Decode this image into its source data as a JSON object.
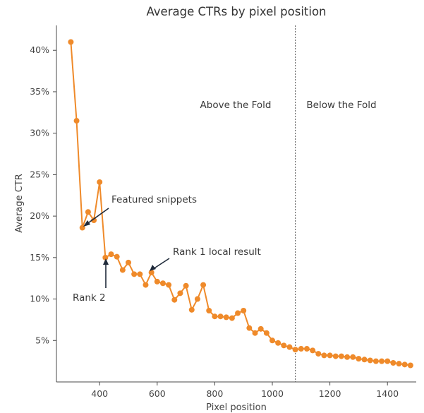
{
  "chart_data": {
    "type": "line",
    "title": "Average CTRs by pixel position",
    "xlabel": "Pixel position",
    "ylabel": "Average CTR",
    "xlim": [
      250,
      1500
    ],
    "ylim": [
      0,
      43
    ],
    "x_ticks": [
      400,
      600,
      800,
      1000,
      1200,
      1400
    ],
    "x_tick_labels": [
      "400",
      "600",
      "800",
      "1000",
      "1200",
      "1400"
    ],
    "y_ticks": [
      5,
      10,
      15,
      20,
      25,
      30,
      35,
      40
    ],
    "y_tick_labels": [
      "5%",
      "10%",
      "15%",
      "20%",
      "25%",
      "30%",
      "35%",
      "40%"
    ],
    "color": "#ef8a2a",
    "fold_x": 1080,
    "regions": [
      {
        "label": "Above the Fold",
        "side": "left"
      },
      {
        "label": "Below the Fold",
        "side": "right"
      }
    ],
    "annotations": [
      {
        "label": "Featured snippets",
        "target_x": 340,
        "target_y": 18.6
      },
      {
        "label": "Rank 1 local result",
        "target_x": 580,
        "target_y": 13.2
      },
      {
        "label": "Rank 2",
        "target_x": 420,
        "target_y": 15.0
      }
    ],
    "series": [
      {
        "name": "Average CTR",
        "points": [
          [
            300,
            41.0
          ],
          [
            320,
            31.5
          ],
          [
            340,
            18.6
          ],
          [
            360,
            20.5
          ],
          [
            380,
            19.5
          ],
          [
            400,
            24.1
          ],
          [
            420,
            15.0
          ],
          [
            440,
            15.4
          ],
          [
            460,
            15.1
          ],
          [
            480,
            13.5
          ],
          [
            500,
            14.4
          ],
          [
            520,
            13.0
          ],
          [
            540,
            13.0
          ],
          [
            560,
            11.7
          ],
          [
            580,
            13.2
          ],
          [
            600,
            12.1
          ],
          [
            620,
            11.9
          ],
          [
            640,
            11.7
          ],
          [
            660,
            9.9
          ],
          [
            680,
            10.7
          ],
          [
            700,
            11.6
          ],
          [
            720,
            8.7
          ],
          [
            740,
            10.0
          ],
          [
            760,
            11.7
          ],
          [
            780,
            8.6
          ],
          [
            800,
            7.9
          ],
          [
            820,
            7.9
          ],
          [
            840,
            7.8
          ],
          [
            860,
            7.7
          ],
          [
            880,
            8.3
          ],
          [
            900,
            8.6
          ],
          [
            920,
            6.5
          ],
          [
            940,
            5.9
          ],
          [
            960,
            6.4
          ],
          [
            980,
            5.9
          ],
          [
            1000,
            5.0
          ],
          [
            1020,
            4.7
          ],
          [
            1040,
            4.4
          ],
          [
            1060,
            4.2
          ],
          [
            1080,
            3.9
          ],
          [
            1100,
            4.0
          ],
          [
            1120,
            4.0
          ],
          [
            1140,
            3.8
          ],
          [
            1160,
            3.4
          ],
          [
            1180,
            3.2
          ],
          [
            1200,
            3.2
          ],
          [
            1220,
            3.1
          ],
          [
            1240,
            3.1
          ],
          [
            1260,
            3.0
          ],
          [
            1280,
            3.0
          ],
          [
            1300,
            2.8
          ],
          [
            1320,
            2.7
          ],
          [
            1340,
            2.6
          ],
          [
            1360,
            2.5
          ],
          [
            1380,
            2.5
          ],
          [
            1400,
            2.5
          ],
          [
            1420,
            2.3
          ],
          [
            1440,
            2.2
          ],
          [
            1460,
            2.1
          ],
          [
            1480,
            2.0
          ]
        ]
      }
    ]
  }
}
